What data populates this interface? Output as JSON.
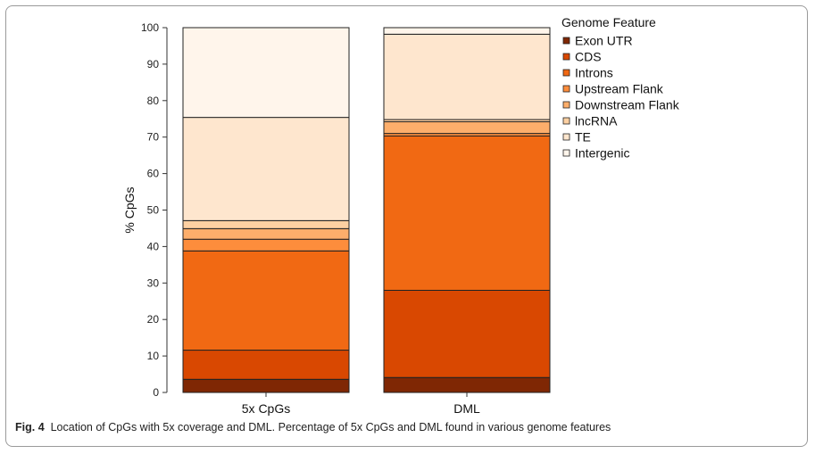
{
  "caption": {
    "label": "Fig. 4",
    "text": "Location of CpGs with 5x coverage and DML. Percentage of 5x CpGs and DML found in various genome features"
  },
  "chart_data": {
    "type": "bar",
    "stacked": true,
    "ylabel": "% CpGs",
    "xlabel": "",
    "ylim": [
      0,
      100
    ],
    "yticks": [
      0,
      10,
      20,
      30,
      40,
      50,
      60,
      70,
      80,
      90,
      100
    ],
    "categories": [
      "5x CpGs",
      "DML"
    ],
    "legend_title": "Genome Feature",
    "legend_position": "right",
    "series": [
      {
        "name": "Exon UTR",
        "color": "#7f2704",
        "values": [
          3.6,
          4.1
        ]
      },
      {
        "name": "CDS",
        "color": "#d94801",
        "values": [
          8.0,
          23.9
        ]
      },
      {
        "name": "Introns",
        "color": "#f16913",
        "values": [
          27.2,
          42.3
        ]
      },
      {
        "name": "Upstream Flank",
        "color": "#fd8d3c",
        "values": [
          3.2,
          0.7
        ]
      },
      {
        "name": "Downstream Flank",
        "color": "#fdae6b",
        "values": [
          2.9,
          3.2
        ]
      },
      {
        "name": "lncRNA",
        "color": "#fdd0a2",
        "values": [
          2.2,
          0.6
        ]
      },
      {
        "name": "TE",
        "color": "#fee6ce",
        "values": [
          28.3,
          23.4
        ]
      },
      {
        "name": "Intergenic",
        "color": "#fff5eb",
        "values": [
          24.6,
          1.8
        ]
      }
    ]
  }
}
